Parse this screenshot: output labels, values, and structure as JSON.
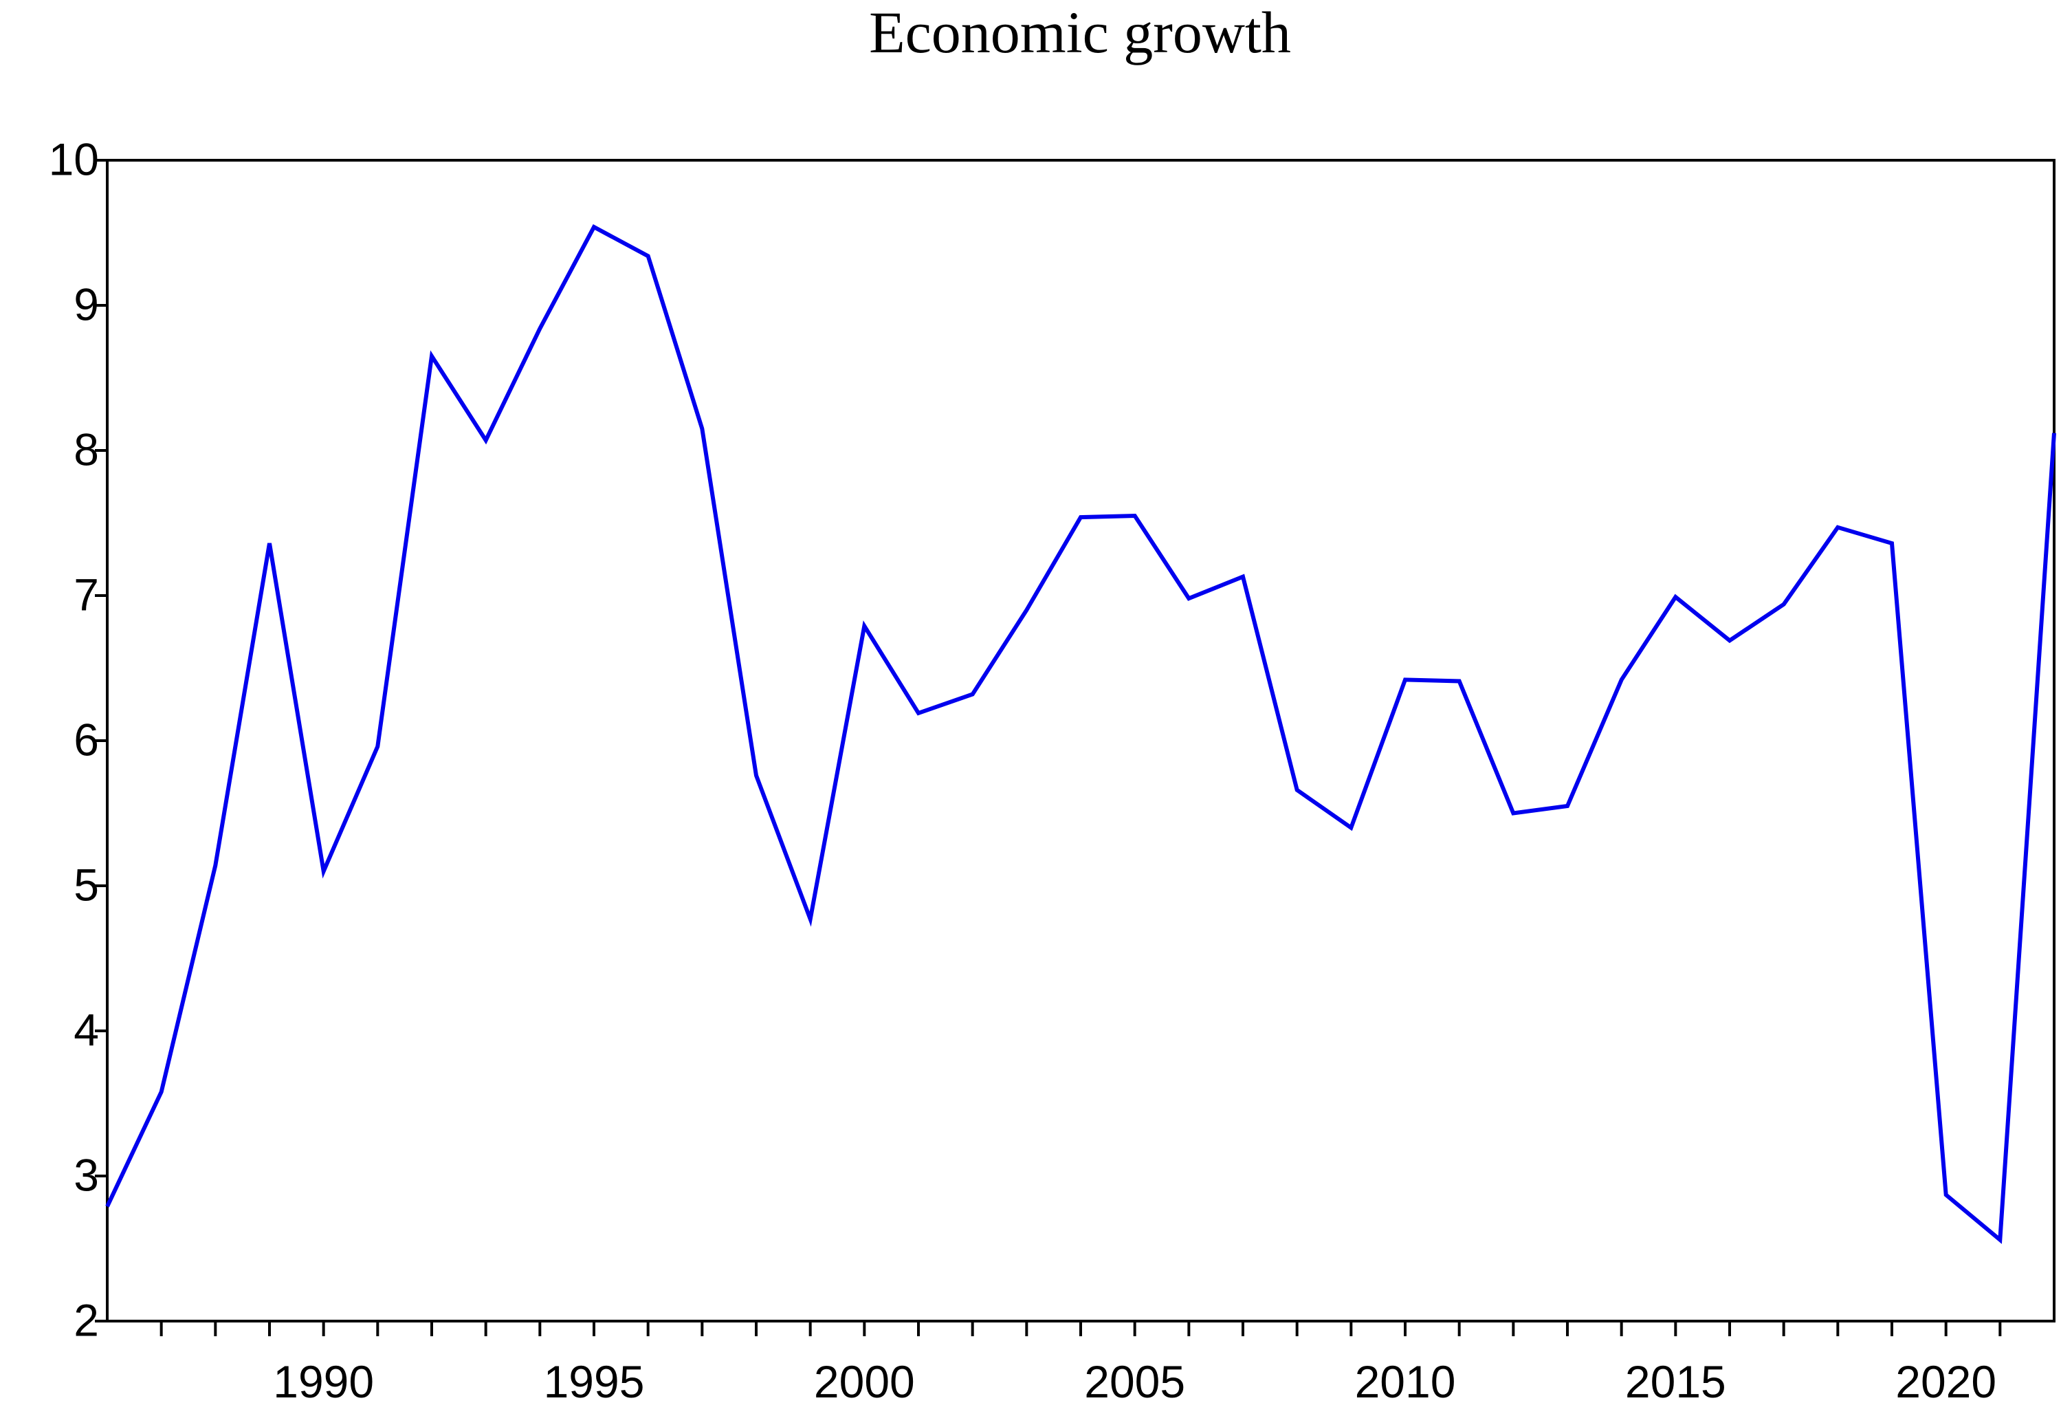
{
  "chart_data": {
    "type": "line",
    "title": "Economic growth",
    "xlabel": "",
    "ylabel": "",
    "xlim": [
      1986,
      2022
    ],
    "ylim": [
      2,
      10
    ],
    "x_tick_labels": [
      "1990",
      "1995",
      "2000",
      "2005",
      "2010",
      "2015",
      "2020"
    ],
    "y_tick_labels": [
      "2",
      "3",
      "4",
      "5",
      "6",
      "7",
      "8",
      "9",
      "10"
    ],
    "grid": false,
    "series": [
      {
        "color": "#0000ee",
        "x": [
          1986,
          1987,
          1988,
          1989,
          1990,
          1991,
          1992,
          1993,
          1994,
          1995,
          1996,
          1997,
          1998,
          1999,
          2000,
          2001,
          2002,
          2003,
          2004,
          2005,
          2006,
          2007,
          2008,
          2009,
          2010,
          2011,
          2012,
          2013,
          2014,
          2015,
          2016,
          2017,
          2018,
          2019,
          2020,
          2021,
          2022
        ],
        "values": [
          2.79,
          3.58,
          5.14,
          7.36,
          5.1,
          5.96,
          8.65,
          8.07,
          8.84,
          9.54,
          9.34,
          8.15,
          5.76,
          4.77,
          6.79,
          6.19,
          6.32,
          6.9,
          7.54,
          7.55,
          6.98,
          7.13,
          5.66,
          5.4,
          6.42,
          6.41,
          5.5,
          5.55,
          6.42,
          6.99,
          6.69,
          6.94,
          7.47,
          7.36,
          2.87,
          2.56,
          8.12
        ]
      }
    ]
  }
}
